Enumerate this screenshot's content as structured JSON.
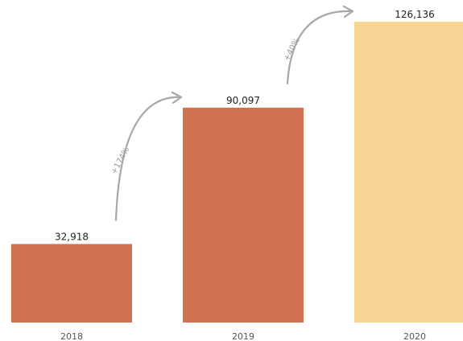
{
  "chart_data": {
    "type": "bar",
    "categories": [
      "2018",
      "2019",
      "2020"
    ],
    "values": [
      32918,
      90097,
      126136
    ],
    "value_labels": [
      "32,918",
      "90,097",
      "126,136"
    ],
    "colors": [
      "#d2714f",
      "#d2714f",
      "#f6d494"
    ],
    "growth_labels": [
      "+174%",
      "+40%"
    ],
    "ylim": [
      0,
      126136
    ],
    "grid": false,
    "legend": "none"
  }
}
